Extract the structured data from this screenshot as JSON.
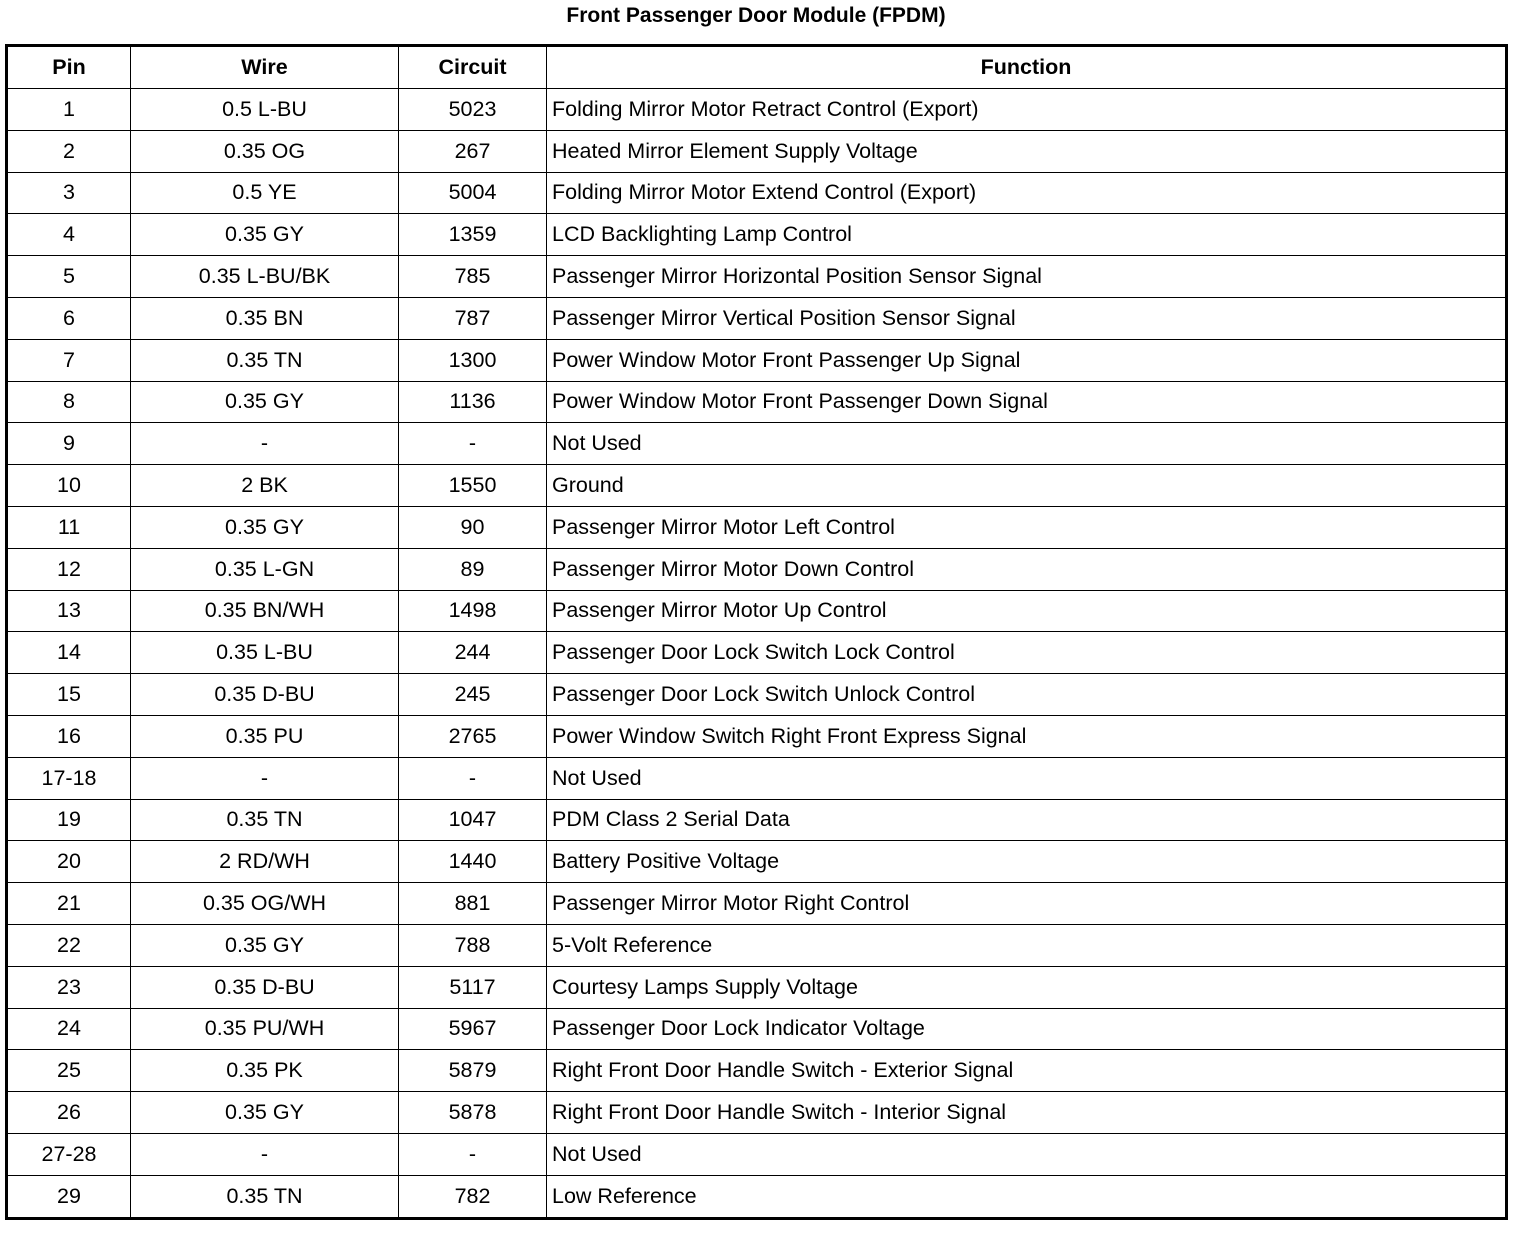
{
  "title": "Front Passenger Door Module (FPDM)",
  "columns": [
    "Pin",
    "Wire",
    "Circuit",
    "Function"
  ],
  "rows": [
    [
      "1",
      "0.5 L-BU",
      "5023",
      "Folding Mirror Motor Retract Control (Export)"
    ],
    [
      "2",
      "0.35 OG",
      "267",
      "Heated Mirror Element Supply Voltage"
    ],
    [
      "3",
      "0.5 YE",
      "5004",
      "Folding Mirror Motor Extend Control (Export)"
    ],
    [
      "4",
      "0.35 GY",
      "1359",
      "LCD Backlighting Lamp Control"
    ],
    [
      "5",
      "0.35 L-BU/BK",
      "785",
      "Passenger Mirror Horizontal Position Sensor Signal"
    ],
    [
      "6",
      "0.35 BN",
      "787",
      "Passenger Mirror Vertical Position Sensor Signal"
    ],
    [
      "7",
      "0.35 TN",
      "1300",
      "Power Window Motor Front Passenger Up Signal"
    ],
    [
      "8",
      "0.35 GY",
      "1136",
      "Power Window Motor Front Passenger Down Signal"
    ],
    [
      "9",
      "-",
      "-",
      "Not Used"
    ],
    [
      "10",
      "2 BK",
      "1550",
      "Ground"
    ],
    [
      "11",
      "0.35 GY",
      "90",
      "Passenger Mirror Motor Left Control"
    ],
    [
      "12",
      "0.35 L-GN",
      "89",
      "Passenger Mirror Motor Down Control"
    ],
    [
      "13",
      "0.35 BN/WH",
      "1498",
      "Passenger Mirror Motor Up Control"
    ],
    [
      "14",
      "0.35 L-BU",
      "244",
      "Passenger Door Lock Switch Lock Control"
    ],
    [
      "15",
      "0.35 D-BU",
      "245",
      "Passenger Door Lock Switch Unlock Control"
    ],
    [
      "16",
      "0.35 PU",
      "2765",
      "Power Window Switch Right Front Express Signal"
    ],
    [
      "17-18",
      "-",
      "-",
      "Not Used"
    ],
    [
      "19",
      "0.35 TN",
      "1047",
      "PDM Class 2 Serial Data"
    ],
    [
      "20",
      "2 RD/WH",
      "1440",
      "Battery Positive Voltage"
    ],
    [
      "21",
      "0.35 OG/WH",
      "881",
      "Passenger Mirror Motor Right Control"
    ],
    [
      "22",
      "0.35 GY",
      "788",
      "5-Volt Reference"
    ],
    [
      "23",
      "0.35 D-BU",
      "5117",
      "Courtesy Lamps Supply Voltage"
    ],
    [
      "24",
      "0.35 PU/WH",
      "5967",
      "Passenger Door Lock Indicator Voltage"
    ],
    [
      "25",
      "0.35 PK",
      "5879",
      "Right Front Door Handle Switch - Exterior Signal"
    ],
    [
      "26",
      "0.35 GY",
      "5878",
      "Right Front Door Handle Switch - Interior Signal"
    ],
    [
      "27-28",
      "-",
      "-",
      "Not Used"
    ],
    [
      "29",
      "0.35 TN",
      "782",
      "Low Reference"
    ]
  ]
}
